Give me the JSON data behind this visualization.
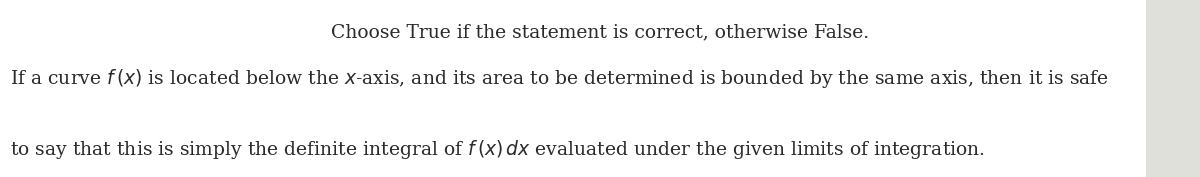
{
  "title": "Choose True if the statement is correct, otherwise False.",
  "title_fontsize": 13.5,
  "title_color": "#2a2a2a",
  "body_fontsize": 13.5,
  "body_color": "#2a2a2a",
  "background_color": "#ffffff",
  "right_panel_color": "#e0e0da",
  "figsize": [
    12.0,
    1.77
  ],
  "dpi": 100
}
